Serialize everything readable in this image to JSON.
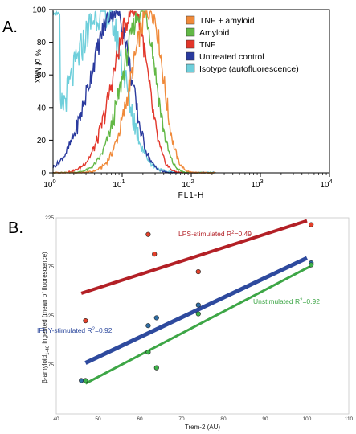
{
  "panel_labels": {
    "a": "A.",
    "b": "B."
  },
  "chart_data": [
    {
      "type": "line",
      "xscale": "log",
      "xlim": [
        1,
        10000
      ],
      "ylim": [
        0,
        100
      ],
      "xlabel": "FL1-H",
      "ylabel": "% of Max",
      "xticks": [
        {
          "value": 1,
          "base": "10",
          "exp": "0"
        },
        {
          "value": 10,
          "base": "10",
          "exp": "1"
        },
        {
          "value": 100,
          "base": "10",
          "exp": "2"
        },
        {
          "value": 1000,
          "base": "10",
          "exp": "3"
        },
        {
          "value": 10000,
          "base": "10",
          "exp": "4"
        }
      ],
      "yticks": [
        0,
        20,
        40,
        60,
        80,
        100
      ],
      "legend_position": "top-right",
      "series": [
        {
          "name": "TNF + amyloid",
          "color": "#F08A3A",
          "peak_x": 26,
          "width": 0.22
        },
        {
          "name": "Amyloid",
          "color": "#62B846",
          "peak_x": 20,
          "width": 0.23
        },
        {
          "name": "TNF",
          "color": "#E2362A",
          "peak_x": 15,
          "width": 0.24
        },
        {
          "name": "Untreated control",
          "color": "#2A3A9E",
          "peak_x": 8,
          "width": 0.28
        },
        {
          "name": "Isotype (autofluorescence)",
          "color": "#6FCFDB",
          "peak_x": 5.5,
          "width": 0.36
        }
      ]
    },
    {
      "type": "scatter",
      "xlabel": "Trem-2 (AU)",
      "ylabel": "β-amyloid1-40 ingested (mean of fluorescence)",
      "ylabel_parts": {
        "pre": "β-amyloid",
        "sub": "1-40",
        "post": " ingested (mean of fluorescence)"
      },
      "xlim": [
        40,
        110
      ],
      "ylim": [
        25,
        225
      ],
      "xticks": [
        40,
        50,
        60,
        70,
        80,
        90,
        100,
        110
      ],
      "yticks": [
        75,
        125,
        175,
        225
      ],
      "fits": [
        {
          "name": "LPS-stimulated",
          "label_pre": "LPS-stimulated R",
          "label_sup": "2",
          "label_post": "=0.49",
          "color": "#B32026",
          "x": [
            46,
            100
          ],
          "y": [
            148,
            222
          ]
        },
        {
          "name": "IFNY-stimulated",
          "label_pre": "IFNY-stimulated R",
          "label_sup": "2",
          "label_post": "=0.92",
          "color": "#2E4A9E",
          "x": [
            47,
            100
          ],
          "y": [
            77,
            184
          ]
        },
        {
          "name": "Unstimulated",
          "label_pre": "Unstimulated R",
          "label_sup": "2",
          "label_post": "=0.92",
          "color": "#3DA646",
          "x": [
            47,
            101
          ],
          "y": [
            56,
            176
          ]
        }
      ],
      "points": [
        {
          "group": "LPS-stimulated",
          "color": "#E4402A",
          "x": [
            47,
            62,
            63.5,
            74,
            101
          ],
          "y": [
            120,
            208,
            188,
            170,
            218
          ]
        },
        {
          "group": "IFNY-stimulated",
          "color": "#2E6DA4",
          "x": [
            46,
            62,
            64,
            74,
            101
          ],
          "y": [
            59,
            115,
            123,
            136,
            179
          ]
        },
        {
          "group": "Unstimulated",
          "color": "#3DB24A",
          "x": [
            47,
            62,
            64,
            74,
            101
          ],
          "y": [
            59,
            88,
            72,
            127,
            177
          ]
        }
      ]
    }
  ]
}
